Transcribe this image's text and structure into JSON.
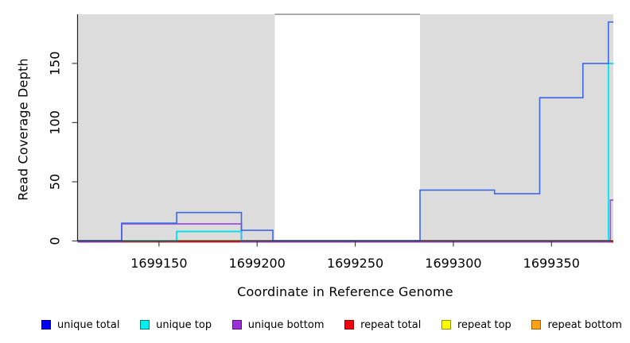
{
  "figure": {
    "xlabel": "Coordinate in Reference Genome",
    "ylabel": "Read Coverage Depth"
  },
  "chart_data": {
    "type": "line",
    "subtype": "step-coverage-plot",
    "title": "",
    "xlabel": "Coordinate in Reference Genome",
    "ylabel": "Read Coverage Depth",
    "xlim": [
      1699108.5,
      1699381.5
    ],
    "ylim": [
      0,
      191.5
    ],
    "x_ticks": [
      1699150,
      1699200,
      1699250,
      1699300,
      1699350
    ],
    "y_ticks": [
      0,
      50,
      100,
      150
    ],
    "grid": false,
    "legend_position": "bottom",
    "shaded_regions": [
      {
        "from": 1699108.5,
        "to": 1699209,
        "color": "#dcdcdc"
      },
      {
        "from": 1699283,
        "to": 1699381.5,
        "color": "#dcdcdc"
      }
    ],
    "gap_top_border": {
      "from": 1699209,
      "to": 1699283,
      "color": "#787878"
    },
    "series": [
      {
        "name": "repeat top",
        "color": "#ffe400",
        "points": [
          [
            1699108.5,
            0
          ],
          [
            1699381.5,
            0
          ]
        ]
      },
      {
        "name": "repeat bottom",
        "color": "#ff9015",
        "points": [
          [
            1699108.5,
            0
          ],
          [
            1699381.5,
            0
          ]
        ]
      },
      {
        "name": "repeat total",
        "color": "#dc3652",
        "points": [
          [
            1699108.5,
            0
          ],
          [
            1699381.5,
            0
          ]
        ]
      },
      {
        "name": "unique bottom",
        "color": "#a252e0",
        "points": [
          [
            1699108.5,
            0
          ],
          [
            1699131,
            15
          ],
          [
            1699192,
            0
          ],
          [
            1699380,
            35
          ],
          [
            1699381.5,
            35
          ]
        ]
      },
      {
        "name": "unique top",
        "color": "#00e0e8",
        "points": [
          [
            1699108.5,
            0
          ],
          [
            1699159,
            8
          ],
          [
            1699192,
            0
          ],
          [
            1699379,
            150
          ],
          [
            1699381.5,
            150
          ]
        ]
      },
      {
        "name": "unique total",
        "color": "#3d68e8",
        "points": [
          [
            1699108.5,
            0
          ],
          [
            1699131,
            15
          ],
          [
            1699159,
            24
          ],
          [
            1699192,
            9
          ],
          [
            1699208,
            0
          ],
          [
            1699283,
            43
          ],
          [
            1699321,
            40
          ],
          [
            1699344,
            121
          ],
          [
            1699366,
            150
          ],
          [
            1699379,
            185
          ],
          [
            1699381.5,
            185
          ]
        ]
      }
    ],
    "baseline_blends": [
      {
        "from": 1699108.5,
        "to": 1699131,
        "color": "#5b4be8"
      },
      {
        "from": 1699131,
        "to": 1699159,
        "color": "#8fcc98"
      },
      {
        "from": 1699159,
        "to": 1699192,
        "color": "#ff9015"
      },
      {
        "from": 1699192,
        "to": 1699208,
        "color": "#e05a6a"
      },
      {
        "from": 1699208,
        "to": 1699283,
        "color": "#5b4be8"
      },
      {
        "from": 1699283,
        "to": 1699380,
        "color": "#dc3652"
      },
      {
        "from": 1699380,
        "to": 1699381.5,
        "color": "#ff9015"
      }
    ]
  },
  "legend": {
    "items": [
      {
        "label": "unique total",
        "color": "#0000ee",
        "border": "#0000a0"
      },
      {
        "label": "unique top",
        "color": "#00eeee",
        "border": "#007d7d"
      },
      {
        "label": "unique bottom",
        "color": "#9b30d8",
        "border": "#5e1487"
      },
      {
        "label": "repeat total",
        "color": "#ee0011",
        "border": "#990000"
      },
      {
        "label": "repeat top",
        "color": "#ffff00",
        "border": "#8f8f00"
      },
      {
        "label": "repeat bottom",
        "color": "#ffa019",
        "border": "#a05f00"
      }
    ]
  }
}
